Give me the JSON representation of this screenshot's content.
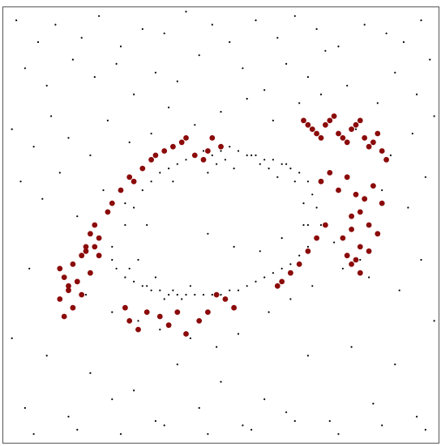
{
  "chart_data": {
    "type": "scatter",
    "title": "",
    "xlabel": "",
    "ylabel": "",
    "xlim": [
      0,
      1
    ],
    "ylim": [
      0,
      1
    ],
    "grid": false,
    "legend": "none",
    "series": [
      {
        "name": "",
        "color": "#000000",
        "marker": "dot",
        "x": [
          0.03,
          0.08,
          0.12,
          0.18,
          0.22,
          0.27,
          0.32,
          0.37,
          0.42,
          0.48,
          0.52,
          0.58,
          0.63,
          0.67,
          0.72,
          0.77,
          0.83,
          0.88,
          0.92,
          0.96,
          0.05,
          0.1,
          0.16,
          0.21,
          0.26,
          0.3,
          0.35,
          0.4,
          0.45,
          0.55,
          0.6,
          0.65,
          0.7,
          0.74,
          0.79,
          0.86,
          0.9,
          0.95,
          0.98,
          0.02,
          0.07,
          0.11,
          0.15,
          0.2,
          0.24,
          0.29,
          0.34,
          0.38,
          0.44,
          0.5,
          0.56,
          0.62,
          0.68,
          0.73,
          0.81,
          0.85,
          0.89,
          0.94,
          0.99,
          0.04,
          0.09,
          0.13,
          0.17,
          0.23,
          0.28,
          0.33,
          0.39,
          0.47,
          0.53,
          0.59,
          0.64,
          0.69,
          0.76,
          0.82,
          0.87,
          0.93,
          0.97,
          0.06,
          0.14,
          0.19,
          0.25,
          0.31,
          0.36,
          0.43,
          0.49,
          0.54,
          0.61,
          0.66,
          0.71,
          0.78,
          0.84,
          0.91,
          0.96,
          0.02,
          0.1,
          0.2,
          0.3,
          0.4,
          0.5,
          0.6,
          0.7,
          0.8,
          0.9,
          0.99,
          0.05,
          0.15,
          0.25,
          0.35,
          0.45,
          0.55,
          0.65,
          0.75,
          0.85,
          0.95,
          0.07,
          0.17,
          0.27,
          0.37,
          0.47,
          0.57,
          0.67,
          0.77,
          0.87,
          0.97,
          0.25,
          0.28,
          0.3,
          0.32,
          0.34,
          0.36,
          0.38,
          0.4,
          0.42,
          0.44,
          0.46,
          0.48,
          0.5,
          0.52,
          0.54,
          0.56,
          0.58,
          0.6,
          0.62,
          0.64,
          0.66,
          0.68,
          0.7,
          0.71,
          0.72,
          0.73,
          0.72,
          0.7,
          0.68,
          0.66,
          0.64,
          0.62,
          0.6,
          0.58,
          0.56,
          0.54,
          0.52,
          0.5,
          0.48,
          0.46,
          0.44,
          0.42,
          0.4,
          0.38,
          0.36,
          0.34,
          0.32,
          0.3,
          0.28,
          0.26,
          0.25,
          0.29,
          0.31,
          0.33,
          0.35,
          0.37,
          0.39,
          0.41,
          0.43,
          0.47,
          0.49,
          0.51,
          0.53,
          0.57,
          0.59,
          0.61,
          0.63,
          0.65,
          0.67,
          0.69,
          0.7
        ],
        "y": [
          0.97,
          0.92,
          0.96,
          0.93,
          0.98,
          0.91,
          0.95,
          0.94,
          0.99,
          0.96,
          0.92,
          0.97,
          0.93,
          0.98,
          0.95,
          0.91,
          0.96,
          0.94,
          0.92,
          0.97,
          0.86,
          0.82,
          0.88,
          0.84,
          0.87,
          0.8,
          0.85,
          0.83,
          0.89,
          0.86,
          0.81,
          0.87,
          0.84,
          0.9,
          0.82,
          0.78,
          0.85,
          0.8,
          0.88,
          0.72,
          0.68,
          0.75,
          0.7,
          0.66,
          0.74,
          0.69,
          0.71,
          0.77,
          0.73,
          0.76,
          0.79,
          0.74,
          0.78,
          0.8,
          0.72,
          0.69,
          0.66,
          0.71,
          0.75,
          0.6,
          0.56,
          0.62,
          0.52,
          0.58,
          0.55,
          0.5,
          0.6,
          0.48,
          0.45,
          0.44,
          0.47,
          0.5,
          0.46,
          0.42,
          0.58,
          0.54,
          0.61,
          0.4,
          0.38,
          0.34,
          0.3,
          0.28,
          0.26,
          0.24,
          0.22,
          0.25,
          0.3,
          0.33,
          0.36,
          0.4,
          0.38,
          0.35,
          0.42,
          0.24,
          0.2,
          0.16,
          0.12,
          0.18,
          0.14,
          0.1,
          0.2,
          0.22,
          0.18,
          0.28,
          0.08,
          0.06,
          0.1,
          0.05,
          0.08,
          0.04,
          0.07,
          0.05,
          0.09,
          0.06,
          0.02,
          0.03,
          0.02,
          0.04,
          0.02,
          0.03,
          0.05,
          0.02,
          0.04,
          0.03,
          0.45,
          0.5,
          0.54,
          0.58,
          0.6,
          0.62,
          0.63,
          0.64,
          0.65,
          0.66,
          0.67,
          0.66,
          0.67,
          0.68,
          0.67,
          0.66,
          0.66,
          0.65,
          0.65,
          0.64,
          0.63,
          0.62,
          0.6,
          0.57,
          0.54,
          0.5,
          0.47,
          0.45,
          0.43,
          0.41,
          0.4,
          0.39,
          0.38,
          0.37,
          0.36,
          0.35,
          0.35,
          0.34,
          0.34,
          0.34,
          0.34,
          0.34,
          0.34,
          0.34,
          0.35,
          0.35,
          0.36,
          0.37,
          0.38,
          0.4,
          0.42,
          0.4,
          0.42,
          0.36,
          0.38,
          0.33,
          0.35,
          0.33,
          0.36,
          0.62,
          0.64,
          0.65,
          0.63,
          0.66,
          0.64,
          0.63,
          0.61,
          0.64,
          0.6,
          0.55,
          0.5
        ]
      },
      {
        "name": "",
        "color": "#8b0a0a",
        "marker": "circle",
        "x": [
          0.13,
          0.14,
          0.15,
          0.16,
          0.17,
          0.18,
          0.19,
          0.2,
          0.21,
          0.22,
          0.24,
          0.25,
          0.27,
          0.29,
          0.3,
          0.32,
          0.34,
          0.35,
          0.37,
          0.39,
          0.41,
          0.42,
          0.44,
          0.46,
          0.47,
          0.48,
          0.5,
          0.14,
          0.16,
          0.18,
          0.2,
          0.22,
          0.13,
          0.15,
          0.17,
          0.19,
          0.21,
          0.28,
          0.29,
          0.31,
          0.33,
          0.36,
          0.38,
          0.4,
          0.42,
          0.45,
          0.47,
          0.49,
          0.51,
          0.53,
          0.63,
          0.64,
          0.66,
          0.68,
          0.7,
          0.72,
          0.74,
          0.69,
          0.7,
          0.71,
          0.72,
          0.73,
          0.74,
          0.75,
          0.76,
          0.77,
          0.78,
          0.79,
          0.8,
          0.81,
          0.82,
          0.83,
          0.84,
          0.85,
          0.86,
          0.87,
          0.88,
          0.73,
          0.75,
          0.77,
          0.79,
          0.81,
          0.83,
          0.85,
          0.87,
          0.8,
          0.82,
          0.84,
          0.86,
          0.78,
          0.8,
          0.82,
          0.84,
          0.79,
          0.81,
          0.8,
          0.82
        ],
        "y": [
          0.4,
          0.38,
          0.36,
          0.41,
          0.37,
          0.43,
          0.45,
          0.48,
          0.5,
          0.47,
          0.53,
          0.55,
          0.58,
          0.61,
          0.6,
          0.63,
          0.65,
          0.66,
          0.67,
          0.68,
          0.69,
          0.7,
          0.66,
          0.65,
          0.67,
          0.7,
          0.68,
          0.29,
          0.31,
          0.34,
          0.39,
          0.43,
          0.33,
          0.35,
          0.37,
          0.44,
          0.45,
          0.31,
          0.28,
          0.26,
          0.3,
          0.29,
          0.27,
          0.3,
          0.25,
          0.28,
          0.3,
          0.34,
          0.33,
          0.31,
          0.36,
          0.37,
          0.39,
          0.41,
          0.44,
          0.47,
          0.5,
          0.74,
          0.73,
          0.72,
          0.71,
          0.7,
          0.73,
          0.74,
          0.75,
          0.71,
          0.7,
          0.69,
          0.72,
          0.73,
          0.74,
          0.7,
          0.68,
          0.69,
          0.71,
          0.67,
          0.65,
          0.6,
          0.62,
          0.58,
          0.61,
          0.57,
          0.56,
          0.59,
          0.55,
          0.52,
          0.53,
          0.5,
          0.48,
          0.47,
          0.49,
          0.45,
          0.44,
          0.43,
          0.42,
          0.41,
          0.39
        ]
      }
    ]
  }
}
